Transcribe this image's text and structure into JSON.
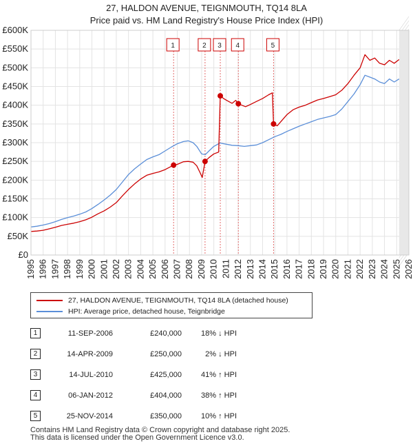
{
  "chart_data": {
    "type": "line",
    "title": "27, HALDON AVENUE, TEIGNMOUTH, TQ14 8LA",
    "subtitle": "Price paid vs. HM Land Registry's House Price Index (HPI)",
    "xlim": [
      1995,
      2026
    ],
    "ylim": [
      0,
      600000
    ],
    "x_ticks": [
      "1995",
      "1996",
      "1997",
      "1998",
      "1999",
      "2000",
      "2001",
      "2002",
      "2003",
      "2004",
      "2005",
      "2006",
      "2007",
      "2008",
      "2009",
      "2010",
      "2011",
      "2012",
      "2013",
      "2014",
      "2015",
      "2016",
      "2017",
      "2018",
      "2019",
      "2020",
      "2021",
      "2022",
      "2023",
      "2024",
      "2025",
      "2026"
    ],
    "y_ticks": [
      {
        "value": 0,
        "label": "£0"
      },
      {
        "value": 50000,
        "label": "£50K"
      },
      {
        "value": 100000,
        "label": "£100K"
      },
      {
        "value": 150000,
        "label": "£150K"
      },
      {
        "value": 200000,
        "label": "£200K"
      },
      {
        "value": 250000,
        "label": "£250K"
      },
      {
        "value": 300000,
        "label": "£300K"
      },
      {
        "value": 350000,
        "label": "£350K"
      },
      {
        "value": 400000,
        "label": "£400K"
      },
      {
        "value": 450000,
        "label": "£450K"
      },
      {
        "value": 500000,
        "label": "£500K"
      },
      {
        "value": 550000,
        "label": "£550K"
      },
      {
        "value": 600000,
        "label": "£600K"
      }
    ],
    "forecast_start": 2025.2,
    "series": [
      {
        "name": "27, HALDON AVENUE, TEIGNMOUTH, TQ14 8LA (detached house)",
        "color": "#cc0000",
        "points": [
          [
            1995.0,
            63000
          ],
          [
            1995.5,
            64000
          ],
          [
            1996.0,
            66000
          ],
          [
            1996.5,
            70000
          ],
          [
            1997.0,
            74000
          ],
          [
            1997.5,
            79000
          ],
          [
            1998.0,
            82000
          ],
          [
            1998.5,
            85000
          ],
          [
            1999.0,
            89000
          ],
          [
            1999.5,
            94000
          ],
          [
            2000.0,
            101000
          ],
          [
            2000.5,
            110000
          ],
          [
            2001.0,
            118000
          ],
          [
            2001.5,
            128000
          ],
          [
            2002.0,
            140000
          ],
          [
            2002.5,
            158000
          ],
          [
            2003.0,
            175000
          ],
          [
            2003.5,
            190000
          ],
          [
            2004.0,
            203000
          ],
          [
            2004.5,
            213000
          ],
          [
            2005.0,
            218000
          ],
          [
            2005.5,
            222000
          ],
          [
            2006.0,
            228000
          ],
          [
            2006.7,
            240000
          ],
          [
            2007.0,
            242000
          ],
          [
            2007.5,
            249000
          ],
          [
            2007.9,
            250000
          ],
          [
            2008.3,
            248000
          ],
          [
            2008.6,
            238000
          ],
          [
            2008.9,
            218000
          ],
          [
            2009.05,
            207000
          ],
          [
            2009.28,
            250000
          ],
          [
            2009.6,
            260000
          ],
          [
            2010.0,
            270000
          ],
          [
            2010.4,
            275000
          ],
          [
            2010.53,
            425000
          ],
          [
            2010.8,
            418000
          ],
          [
            2011.1,
            412000
          ],
          [
            2011.5,
            405000
          ],
          [
            2011.8,
            413000
          ],
          [
            2012.01,
            404000
          ],
          [
            2012.3,
            400000
          ],
          [
            2012.6,
            396000
          ],
          [
            2013.0,
            402000
          ],
          [
            2013.5,
            410000
          ],
          [
            2014.0,
            418000
          ],
          [
            2014.5,
            428000
          ],
          [
            2014.8,
            433000
          ],
          [
            2014.9,
            350000
          ],
          [
            2015.2,
            345000
          ],
          [
            2015.6,
            360000
          ],
          [
            2016.0,
            375000
          ],
          [
            2016.5,
            388000
          ],
          [
            2017.0,
            395000
          ],
          [
            2017.5,
            400000
          ],
          [
            2018.0,
            407000
          ],
          [
            2018.5,
            414000
          ],
          [
            2019.0,
            418000
          ],
          [
            2019.5,
            423000
          ],
          [
            2020.0,
            428000
          ],
          [
            2020.5,
            440000
          ],
          [
            2021.0,
            458000
          ],
          [
            2021.5,
            480000
          ],
          [
            2022.0,
            500000
          ],
          [
            2022.4,
            535000
          ],
          [
            2022.8,
            520000
          ],
          [
            2023.2,
            526000
          ],
          [
            2023.6,
            512000
          ],
          [
            2024.0,
            508000
          ],
          [
            2024.4,
            520000
          ],
          [
            2024.8,
            512000
          ],
          [
            2025.2,
            522000
          ]
        ]
      },
      {
        "name": "HPI: Average price, detached house, Teignbridge",
        "color": "#5a8ed8",
        "points": [
          [
            1995.0,
            75000
          ],
          [
            1995.5,
            77000
          ],
          [
            1996.0,
            80000
          ],
          [
            1996.5,
            84000
          ],
          [
            1997.0,
            89000
          ],
          [
            1997.5,
            95000
          ],
          [
            1998.0,
            100000
          ],
          [
            1998.5,
            104000
          ],
          [
            1999.0,
            109000
          ],
          [
            1999.5,
            115000
          ],
          [
            2000.0,
            124000
          ],
          [
            2000.5,
            135000
          ],
          [
            2001.0,
            147000
          ],
          [
            2001.5,
            160000
          ],
          [
            2002.0,
            175000
          ],
          [
            2002.5,
            195000
          ],
          [
            2003.0,
            215000
          ],
          [
            2003.5,
            230000
          ],
          [
            2004.0,
            243000
          ],
          [
            2004.5,
            255000
          ],
          [
            2005.0,
            262000
          ],
          [
            2005.5,
            268000
          ],
          [
            2006.0,
            278000
          ],
          [
            2006.5,
            288000
          ],
          [
            2007.0,
            297000
          ],
          [
            2007.5,
            303000
          ],
          [
            2007.9,
            305000
          ],
          [
            2008.3,
            300000
          ],
          [
            2008.6,
            290000
          ],
          [
            2009.0,
            270000
          ],
          [
            2009.3,
            268000
          ],
          [
            2009.6,
            278000
          ],
          [
            2010.0,
            290000
          ],
          [
            2010.5,
            299000
          ],
          [
            2011.0,
            296000
          ],
          [
            2011.5,
            293000
          ],
          [
            2012.0,
            292000
          ],
          [
            2012.5,
            290000
          ],
          [
            2013.0,
            292000
          ],
          [
            2013.5,
            294000
          ],
          [
            2014.0,
            300000
          ],
          [
            2014.5,
            308000
          ],
          [
            2015.0,
            316000
          ],
          [
            2015.5,
            322000
          ],
          [
            2016.0,
            330000
          ],
          [
            2016.5,
            337000
          ],
          [
            2017.0,
            344000
          ],
          [
            2017.5,
            350000
          ],
          [
            2018.0,
            356000
          ],
          [
            2018.5,
            362000
          ],
          [
            2019.0,
            366000
          ],
          [
            2019.5,
            370000
          ],
          [
            2020.0,
            375000
          ],
          [
            2020.5,
            390000
          ],
          [
            2021.0,
            410000
          ],
          [
            2021.5,
            430000
          ],
          [
            2022.0,
            455000
          ],
          [
            2022.4,
            480000
          ],
          [
            2022.8,
            475000
          ],
          [
            2023.2,
            470000
          ],
          [
            2023.6,
            462000
          ],
          [
            2024.0,
            458000
          ],
          [
            2024.4,
            470000
          ],
          [
            2024.8,
            462000
          ],
          [
            2025.2,
            470000
          ]
        ]
      }
    ],
    "sales": [
      {
        "num": "1",
        "x": 2006.7,
        "price": 240000
      },
      {
        "num": "2",
        "x": 2009.28,
        "price": 250000
      },
      {
        "num": "3",
        "x": 2010.53,
        "price": 425000
      },
      {
        "num": "4",
        "x": 2012.01,
        "price": 404000
      },
      {
        "num": "5",
        "x": 2014.9,
        "price": 350000
      }
    ]
  },
  "legend": {
    "property_label": "27, HALDON AVENUE, TEIGNMOUTH, TQ14 8LA (detached house)",
    "hpi_label": "HPI: Average price, detached house, Teignbridge"
  },
  "transactions": [
    {
      "num": "1",
      "date": "11-SEP-2006",
      "price": "£240,000",
      "hpi": "18% ↓ HPI"
    },
    {
      "num": "2",
      "date": "14-APR-2009",
      "price": "£250,000",
      "hpi": "2% ↓ HPI"
    },
    {
      "num": "3",
      "date": "14-JUL-2010",
      "price": "£425,000",
      "hpi": "41% ↑ HPI"
    },
    {
      "num": "4",
      "date": "06-JAN-2012",
      "price": "£404,000",
      "hpi": "38% ↑ HPI"
    },
    {
      "num": "5",
      "date": "25-NOV-2014",
      "price": "£350,000",
      "hpi": "10% ↑ HPI"
    }
  ],
  "footer": {
    "line1": "Contains HM Land Registry data © Crown copyright and database right 2025.",
    "line2": "This data is licensed under the Open Government Licence v3.0."
  }
}
